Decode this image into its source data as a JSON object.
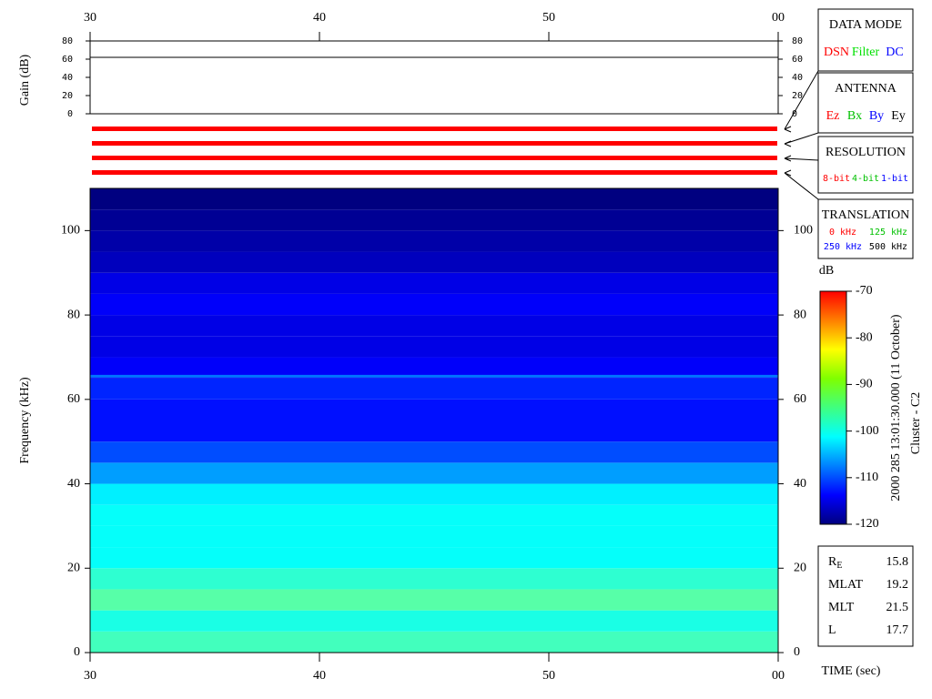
{
  "chart_data": {
    "type": "spectrogram",
    "xlim": [
      30,
      60
    ],
    "xticks": [
      30,
      40,
      50,
      {
        "value": 60,
        "label": "00"
      }
    ],
    "xlabel": "TIME (sec)",
    "ylabel": "Frequency (kHz)",
    "ylim": [
      0,
      110
    ],
    "yticks": [
      0,
      20,
      40,
      60,
      80,
      100
    ],
    "bands": [
      0,
      5,
      10,
      15,
      20,
      25,
      30,
      35,
      40,
      45,
      50,
      55,
      60,
      65,
      70,
      75,
      80,
      85,
      90,
      95,
      100,
      105,
      110
    ],
    "levels": [
      -98,
      -100,
      -97,
      -99,
      -101,
      -101,
      -101,
      -102,
      -106,
      -110,
      -113,
      -113,
      -112,
      -114,
      -115,
      -115,
      -114,
      -115,
      -117,
      -118,
      -119,
      -120
    ],
    "line": {
      "frequency": 65.5,
      "level": -108
    },
    "colorbar": {
      "label": "dB",
      "lim": [
        -120,
        -70
      ],
      "ticks": [
        -120,
        -110,
        -100,
        -90,
        -80,
        -70
      ]
    },
    "gain": {
      "ylabel": "Gain (dB)",
      "ylim": [
        0,
        80
      ],
      "yticks": [
        0,
        20,
        40,
        60,
        80
      ],
      "value": 62
    },
    "side_title": "2000 285 13:01:30.000 (11 October)",
    "spacecraft": "Cluster - C2",
    "boxes": [
      {
        "title": "DATA MODE",
        "options": [
          {
            "text": "DSN",
            "color": "#ff0000"
          },
          {
            "text": "Filter",
            "color": "#00e000"
          },
          {
            "text": "DC",
            "color": "#0000ff"
          }
        ]
      },
      {
        "title": "ANTENNA",
        "options": [
          {
            "text": "Ez",
            "color": "#ff0000"
          },
          {
            "text": "Bx",
            "color": "#00c000"
          },
          {
            "text": "By",
            "color": "#0000ff"
          },
          {
            "text": "Ey",
            "color": "#000000"
          }
        ]
      },
      {
        "title": "RESOLUTION",
        "options": [
          {
            "text": "8-bit",
            "color": "#ff0000"
          },
          {
            "text": "4-bit",
            "color": "#00c000"
          },
          {
            "text": "1-bit",
            "color": "#0000ff"
          }
        ]
      },
      {
        "title": "TRANSLATION",
        "options": [
          {
            "text": "0 kHz",
            "color": "#ff0000"
          },
          {
            "text": "125 kHz",
            "color": "#00c000"
          },
          {
            "text": "250 kHz",
            "color": "#0000ff"
          },
          {
            "text": "500 kHz",
            "color": "#000000"
          }
        ]
      }
    ],
    "ephemeris": [
      {
        "label": "R",
        "sub": "E",
        "value": 15.8
      },
      {
        "label": "MLAT",
        "value": 19.2
      },
      {
        "label": "MLT",
        "value": 21.5
      },
      {
        "label": "L",
        "value": 17.7
      }
    ]
  }
}
